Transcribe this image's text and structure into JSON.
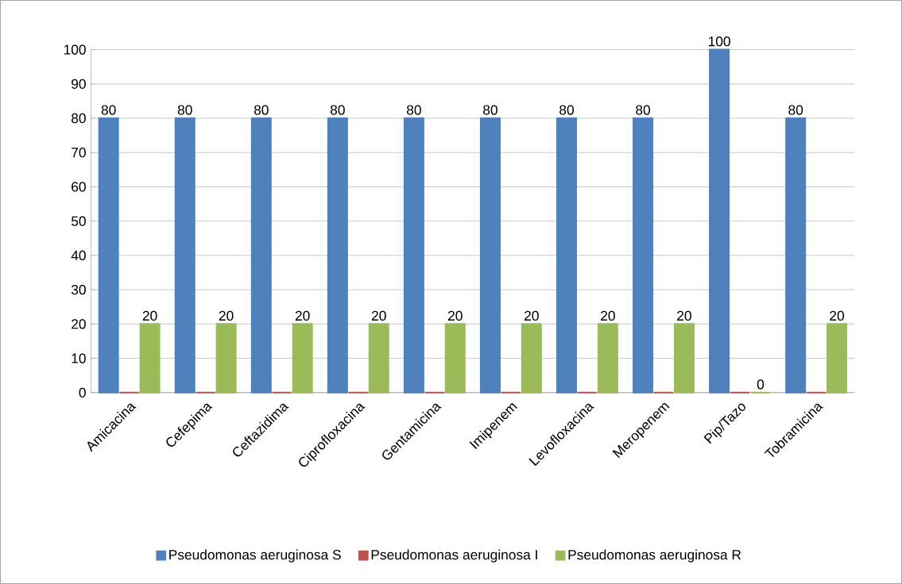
{
  "chart_data": {
    "type": "bar",
    "categories": [
      "Amicacina",
      "Cefepima",
      "Ceftazidima",
      "Ciprofloxacina",
      "Gentamicina",
      "Imipenem",
      "Levofloxacina",
      "Meropenem",
      "Pip/Tazo",
      "Tobramicina"
    ],
    "series": [
      {
        "name": "Pseudomonas aeruginosa S",
        "color": "#4f81bd",
        "values": [
          80,
          80,
          80,
          80,
          80,
          80,
          80,
          80,
          100,
          80
        ],
        "value_labels": [
          "80",
          "80",
          "80",
          "80",
          "80",
          "80",
          "80",
          "80",
          "100",
          "80"
        ]
      },
      {
        "name": "Pseudomonas aeruginosa I",
        "color": "#c0504d",
        "values": [
          0,
          0,
          0,
          0,
          0,
          0,
          0,
          0,
          0,
          0
        ]
      },
      {
        "name": "Pseudomonas aeruginosa R",
        "color": "#9bbb59",
        "values": [
          20,
          20,
          20,
          20,
          20,
          20,
          20,
          20,
          0,
          20
        ],
        "value_labels": [
          "20",
          "20",
          "20",
          "20",
          "20",
          "20",
          "20",
          "20",
          "0",
          "20"
        ]
      }
    ],
    "ylim": [
      0,
      100
    ],
    "yticks": [
      0,
      10,
      20,
      30,
      40,
      50,
      60,
      70,
      80,
      90,
      100
    ],
    "grid": "y",
    "legend": "bottom"
  }
}
